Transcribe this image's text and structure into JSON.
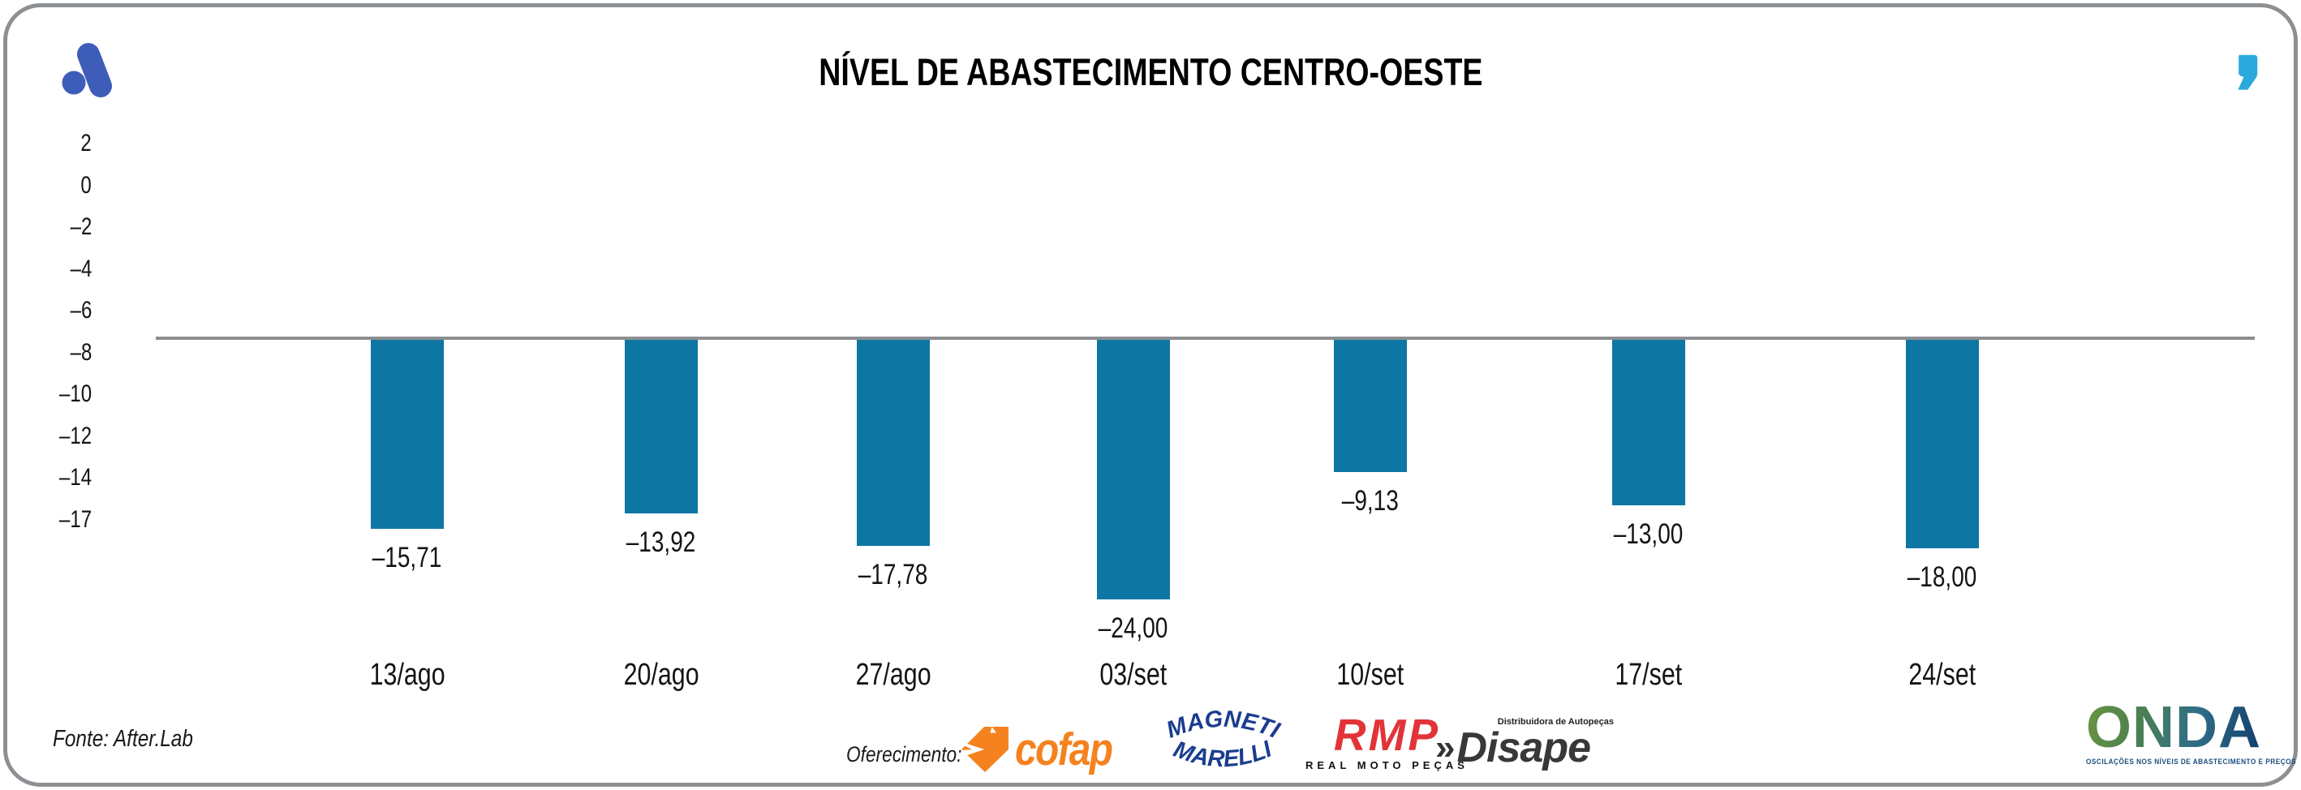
{
  "header": {
    "title": "NÍVEL DE ABASTECIMENTO CENTRO-OESTE"
  },
  "chart_data": {
    "type": "bar",
    "title": "NÍVEL DE ABASTECIMENTO CENTRO-OESTE",
    "categories": [
      "13/ago",
      "20/ago",
      "27/ago",
      "03/set",
      "10/set",
      "17/set",
      "24/set"
    ],
    "values": [
      -15.71,
      -13.92,
      -17.78,
      -24.0,
      -9.13,
      -13.0,
      -18.0
    ],
    "data_labels": [
      "–15,71",
      "–13,92",
      "–17,78",
      "–24,00",
      "–9,13",
      "–13,00",
      "–18,00"
    ],
    "y_ticks": [
      "2",
      "0",
      "–2",
      "–4",
      "–6",
      "–8",
      "–10",
      "–12",
      "–14",
      "–17"
    ],
    "xlabel": "",
    "ylabel": "",
    "grid": false,
    "legend": false,
    "bar_color": "#0E76A3",
    "baseline_color": "#8C8F91",
    "bars_hang_from_reference_line": true
  },
  "icons": {
    "after_lab_logo": "after-lab-logo-icon",
    "quote_mark": "quote-mark-icon",
    "after_blue": "#3E5DB8",
    "quote_blue": "#2BA9DC"
  },
  "footer": {
    "source": "Fonte: After.Lab",
    "sponsor_label": "Oferecimento:",
    "cofap": {
      "name": "cofap",
      "color": "#F5821F"
    },
    "magneti": {
      "line1": "MAGNETI",
      "line2": "MARELLI",
      "color": "#1B3D8F"
    },
    "rmp": {
      "name": "RMP",
      "sub": "REAL MOTO PEÇAS",
      "color": "#E23438"
    },
    "disape": {
      "top": "Distribuidora de Autopeças",
      "chevrons": "»",
      "name": "Disape"
    },
    "onda": {
      "name": "ONDA",
      "tagline": "OSCILAÇÕES NOS NÍVEIS DE ABASTECIMENTO E PREÇOS"
    }
  }
}
